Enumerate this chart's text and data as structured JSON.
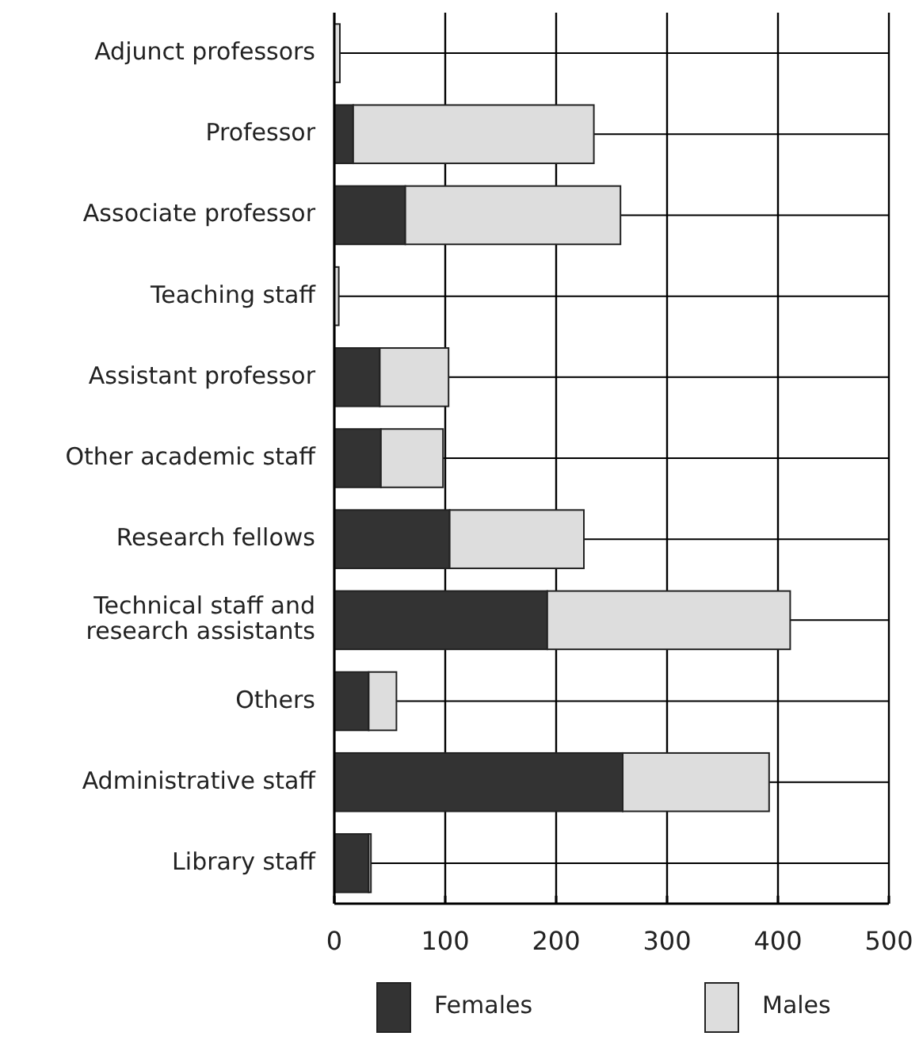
{
  "chart_data": {
    "type": "bar",
    "orientation": "horizontal",
    "stacked": true,
    "categories": [
      "Adjunct professors",
      "Professor",
      "Associate professor",
      "Teaching staff",
      "Assistant professor",
      "Other academic staff",
      "Research fellows",
      "Technical staff and research assistants",
      "Others",
      "Administrative staff",
      "Library staff"
    ],
    "series": [
      {
        "name": "Females",
        "color": "#333333",
        "values": [
          null,
          17,
          64,
          null,
          41,
          42,
          104,
          192,
          31,
          260,
          31
        ]
      },
      {
        "name": "Males",
        "color": "#dddddd",
        "values": [
          5,
          217,
          194,
          4,
          62,
          56,
          121,
          219,
          25,
          132,
          2
        ]
      }
    ],
    "xlim": [
      0,
      500
    ],
    "xticks": [
      0,
      100,
      200,
      300,
      400,
      500
    ],
    "grid": true,
    "legend": "bottom"
  }
}
